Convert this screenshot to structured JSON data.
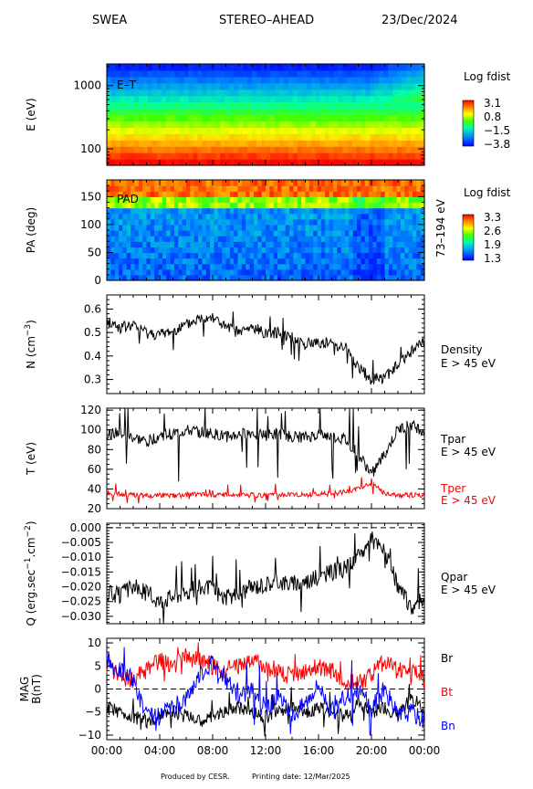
{
  "header": {
    "instrument": "SWEA",
    "spacecraft": "STEREO–AHEAD",
    "date": "23/Dec/2024"
  },
  "footer": {
    "produced": "Produced by CESR.",
    "printing": "Printing date: 12/Mar/2025"
  },
  "time_axis": {
    "ticks": [
      "00:00",
      "04:00",
      "08:00",
      "12:00",
      "16:00",
      "20:00",
      "00:00"
    ],
    "range_hours": [
      0,
      24
    ]
  },
  "chart_data": [
    {
      "type": "heatmap",
      "panel_label": "E–T",
      "ylabel": "E (eV)",
      "yscale": "log",
      "ylim": [
        55,
        2200
      ],
      "yticks": [
        100,
        1000
      ],
      "colorbar": {
        "title": "Log fdist",
        "ticks": [
          3.1,
          0.8,
          -1.5,
          -3.8
        ],
        "range": [
          -3.8,
          3.1
        ]
      }
    },
    {
      "type": "heatmap",
      "panel_label": "PAD",
      "ylabel": "PA (deg)",
      "ylim": [
        0,
        180
      ],
      "yticks": [
        0,
        50,
        100,
        150
      ],
      "side_label": "73–194 eV",
      "colorbar": {
        "title": "Log fdist",
        "ticks": [
          3.3,
          2.6,
          1.9,
          1.3
        ],
        "range": [
          1.3,
          3.3
        ]
      }
    },
    {
      "type": "line",
      "ylabel_main": "N (cm",
      "ylabel_sup": "−3",
      "ylabel_end": ")",
      "ylim": [
        0.24,
        0.66
      ],
      "yticks": [
        0.3,
        0.4,
        0.5,
        0.6
      ],
      "x": [
        0,
        1,
        2,
        3,
        4,
        5,
        6,
        7,
        8,
        9,
        10,
        11,
        12,
        13,
        14,
        15,
        16,
        17,
        18,
        19,
        20,
        21,
        22,
        23,
        24
      ],
      "series": [
        {
          "name": "Density",
          "sub": "E > 45 eV",
          "color": "#000000",
          "values": [
            0.55,
            0.52,
            0.53,
            0.5,
            0.49,
            0.51,
            0.53,
            0.56,
            0.57,
            0.52,
            0.5,
            0.52,
            0.5,
            0.5,
            0.48,
            0.45,
            0.46,
            0.45,
            0.44,
            0.35,
            0.3,
            0.31,
            0.36,
            0.42,
            0.46
          ]
        }
      ]
    },
    {
      "type": "line",
      "ylabel": "T (eV)",
      "ylim": [
        20,
        122
      ],
      "yticks": [
        20,
        40,
        60,
        80,
        100,
        120
      ],
      "x": [
        0,
        1,
        2,
        3,
        4,
        5,
        6,
        7,
        8,
        9,
        10,
        11,
        12,
        13,
        14,
        15,
        16,
        17,
        18,
        19,
        20,
        21,
        22,
        23,
        24
      ],
      "series": [
        {
          "name": "Tpar",
          "sub": "E > 45 eV",
          "color": "#000000",
          "values": [
            95,
            97,
            92,
            88,
            94,
            96,
            99,
            98,
            96,
            93,
            95,
            97,
            94,
            96,
            93,
            92,
            95,
            93,
            90,
            75,
            55,
            75,
            100,
            105,
            98
          ]
        },
        {
          "name": "Tper",
          "sub": "E > 45 eV",
          "color": "#ff0000",
          "values": [
            33,
            35,
            34,
            33,
            34,
            33,
            34,
            35,
            34,
            34,
            33,
            34,
            33,
            34,
            34,
            34,
            35,
            35,
            37,
            40,
            45,
            36,
            33,
            34,
            33
          ]
        }
      ]
    },
    {
      "type": "line",
      "ylabel_main": "Q (erg.sec",
      "ylabel_sup": "−1",
      "ylabel_mid": ".cm",
      "ylabel_sup2": "−2",
      "ylabel_end": ")",
      "ylim": [
        -0.0325,
        0.0015
      ],
      "yticks": [
        0.0,
        -0.005,
        -0.01,
        -0.015,
        -0.02,
        -0.025,
        -0.03
      ],
      "ytick_labels": [
        "0.000",
        "−0.005",
        "−0.010",
        "−0.015",
        "−0.020",
        "−0.025",
        "−0.030"
      ],
      "x": [
        0,
        1,
        2,
        3,
        4,
        5,
        6,
        7,
        8,
        9,
        10,
        11,
        12,
        13,
        14,
        15,
        16,
        17,
        18,
        19,
        20,
        21,
        22,
        23,
        24
      ],
      "series": [
        {
          "name": "Qpar",
          "sub": "E > 45 eV",
          "color": "#000000",
          "values": [
            -0.022,
            -0.023,
            -0.02,
            -0.022,
            -0.025,
            -0.023,
            -0.022,
            -0.02,
            -0.021,
            -0.024,
            -0.022,
            -0.02,
            -0.019,
            -0.018,
            -0.019,
            -0.018,
            -0.017,
            -0.015,
            -0.014,
            -0.01,
            -0.004,
            -0.008,
            -0.02,
            -0.027,
            -0.024
          ]
        }
      ],
      "reference_line": 0.0
    },
    {
      "type": "line",
      "ylabel_main": "MAG",
      "ylabel2": "B(nT)",
      "ylim": [
        -11,
        11
      ],
      "yticks": [
        -10,
        -5,
        0,
        5,
        10
      ],
      "x": [
        0,
        1,
        2,
        3,
        4,
        5,
        6,
        7,
        8,
        9,
        10,
        11,
        12,
        13,
        14,
        15,
        16,
        17,
        18,
        19,
        20,
        21,
        22,
        23,
        24
      ],
      "series": [
        {
          "name": "Br",
          "color": "#000000",
          "values": [
            -4,
            -5,
            -6,
            -7,
            -6,
            -5,
            -6,
            -7,
            -6,
            -5,
            -4,
            -5,
            -6,
            -5,
            -4,
            -5,
            -4,
            -5,
            -6,
            -3,
            -5,
            -4,
            -6,
            -2,
            -5
          ]
        },
        {
          "name": "Bt",
          "color": "#ff0000",
          "values": [
            5,
            3,
            2,
            4,
            6,
            5,
            7,
            6,
            5,
            4,
            5,
            6,
            5,
            4,
            3,
            4,
            5,
            4,
            2,
            1,
            3,
            6,
            4,
            5,
            2
          ]
        },
        {
          "name": "Bn",
          "color": "#0000ff",
          "values": [
            6,
            4,
            2,
            -6,
            -6,
            -4,
            -2,
            3,
            6,
            2,
            -2,
            0,
            -4,
            -2,
            -6,
            -3,
            1,
            -5,
            -2,
            0,
            -4,
            0,
            -6,
            -5,
            -7
          ]
        }
      ],
      "reference_line": 0
    }
  ]
}
